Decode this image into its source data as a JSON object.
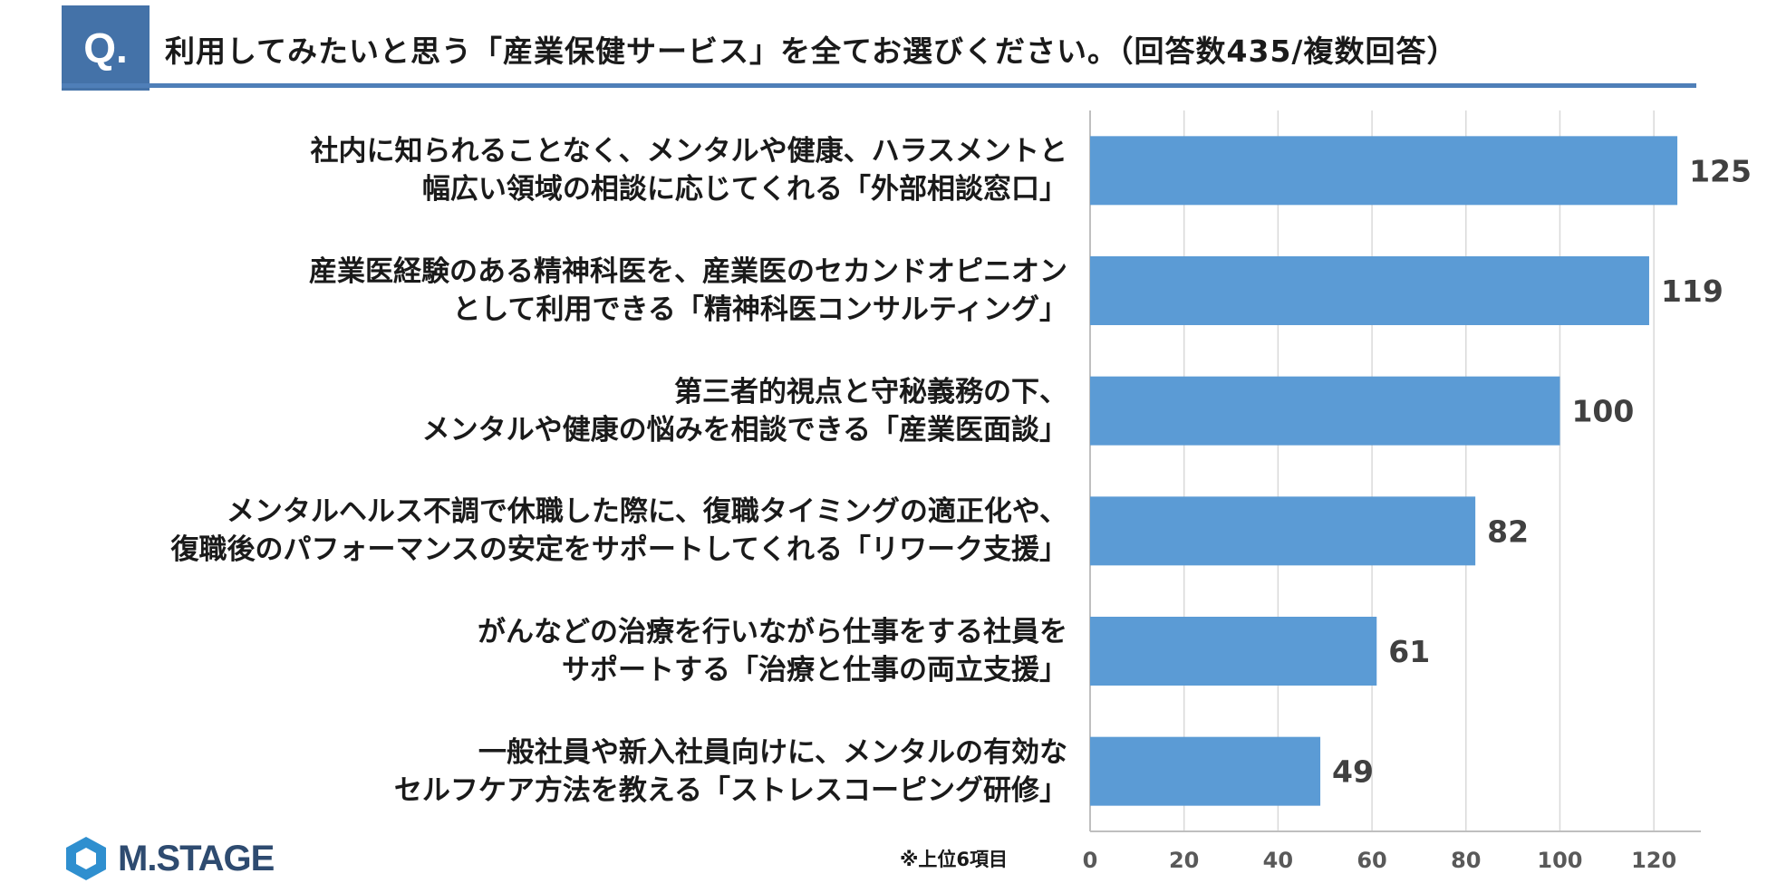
{
  "header": {
    "badge": "Q.",
    "title": "利用してみたいと思う「産業保健サービス」を全てお選びください。（回答数435/複数回答）"
  },
  "chart_data": {
    "type": "bar",
    "orientation": "horizontal",
    "categories": [
      [
        "社内に知られることなく、メンタルや健康、ハラスメントと",
        "幅広い領域の相談に応じてくれる「外部相談窓口」"
      ],
      [
        "産業医経験のある精神科医を、産業医のセカンドオピニオン",
        "として利用できる「精神科医コンサルティング」"
      ],
      [
        "第三者的視点と守秘義務の下、",
        "メンタルや健康の悩みを相談できる「産業医面談」"
      ],
      [
        "メンタルヘルス不調で休職した際に、復職タイミングの適正化や、",
        "復職後のパフォーマンスの安定をサポートしてくれる「リワーク支援」"
      ],
      [
        "がんなどの治療を行いながら仕事をする社員を",
        "サポートする「治療と仕事の両立支援」"
      ],
      [
        "一般社員や新入社員向けに、メンタルの有効な",
        "セルフケア方法を教える「ストレスコーピング研修」"
      ]
    ],
    "values": [
      125,
      119,
      100,
      82,
      61,
      49
    ],
    "xlim": [
      0,
      130
    ],
    "xticks": [
      0,
      20,
      40,
      60,
      80,
      100,
      120
    ],
    "grid": true,
    "legend": "none",
    "bar_color": "#5b9bd5",
    "data_labels": true
  },
  "footnote": "※上位6項目",
  "brand": {
    "name": "M.STAGE",
    "color": "#2e4b70",
    "accent": "#4472a8"
  }
}
